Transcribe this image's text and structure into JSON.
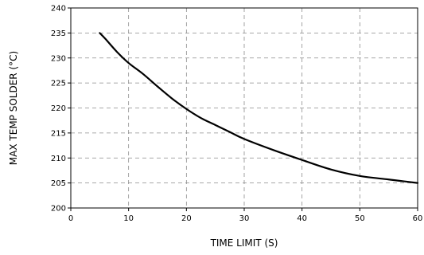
{
  "chart_data": {
    "type": "line",
    "title": "",
    "xlabel": "TIME LIMIT (S)",
    "ylabel": "MAX TEMP SOLDER (°C)",
    "xlim": [
      0,
      60
    ],
    "ylim": [
      200,
      240
    ],
    "xticks": [
      0,
      10,
      20,
      30,
      40,
      50,
      60
    ],
    "yticks": [
      200,
      205,
      210,
      215,
      220,
      225,
      230,
      235,
      240
    ],
    "grid": true,
    "grid_style": "dashed",
    "series": [
      {
        "color": "#000000",
        "x": [
          5,
          6,
          8,
          10,
          12.5,
          15,
          17.5,
          20,
          22.5,
          25,
          27.5,
          30,
          35,
          40,
          45,
          50,
          55,
          60
        ],
        "y": [
          235,
          233.8,
          231.2,
          229.0,
          226.8,
          224.3,
          221.9,
          219.8,
          218.0,
          216.6,
          215.2,
          213.8,
          211.6,
          209.6,
          207.7,
          206.4,
          205.7,
          205.0
        ]
      }
    ]
  }
}
